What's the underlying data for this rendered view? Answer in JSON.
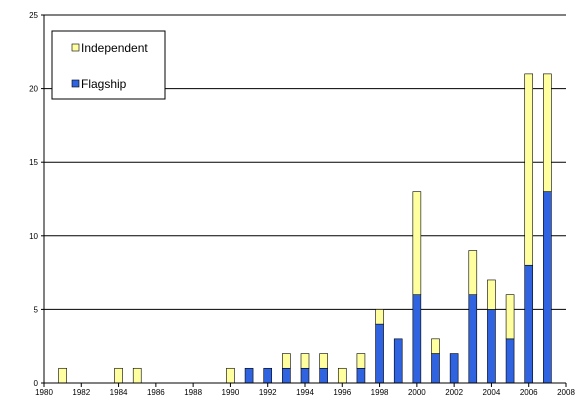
{
  "chart_data": {
    "type": "bar",
    "stacked": true,
    "title": "",
    "xlabel": "",
    "ylabel": "",
    "xlim": [
      1980,
      2008
    ],
    "ylim": [
      0,
      25
    ],
    "x_ticks": [
      1980,
      1982,
      1984,
      1986,
      1988,
      1990,
      1992,
      1994,
      1996,
      1998,
      2000,
      2002,
      2004,
      2006,
      2008
    ],
    "y_ticks": [
      0,
      5,
      10,
      15,
      20,
      25
    ],
    "grid": "horizontal",
    "legend_position": "top-left",
    "x": [
      1981,
      1984,
      1985,
      1990,
      1991,
      1992,
      1993,
      1994,
      1995,
      1996,
      1997,
      1998,
      1999,
      2000,
      2001,
      2002,
      2003,
      2004,
      2005,
      2006,
      2007
    ],
    "series": [
      {
        "name": "Flagship",
        "color": "#2f63e0",
        "values": [
          0,
          0,
          0,
          0,
          1,
          1,
          1,
          1,
          1,
          0,
          1,
          4,
          3,
          6,
          2,
          2,
          6,
          5,
          3,
          8,
          13
        ]
      },
      {
        "name": "Independent",
        "color": "#ffffa0",
        "values": [
          1,
          1,
          1,
          1,
          0,
          0,
          1,
          1,
          1,
          1,
          1,
          1,
          0,
          7,
          1,
          0,
          3,
          2,
          3,
          13,
          8
        ]
      }
    ],
    "legend_order": [
      "Independent",
      "Flagship"
    ]
  }
}
